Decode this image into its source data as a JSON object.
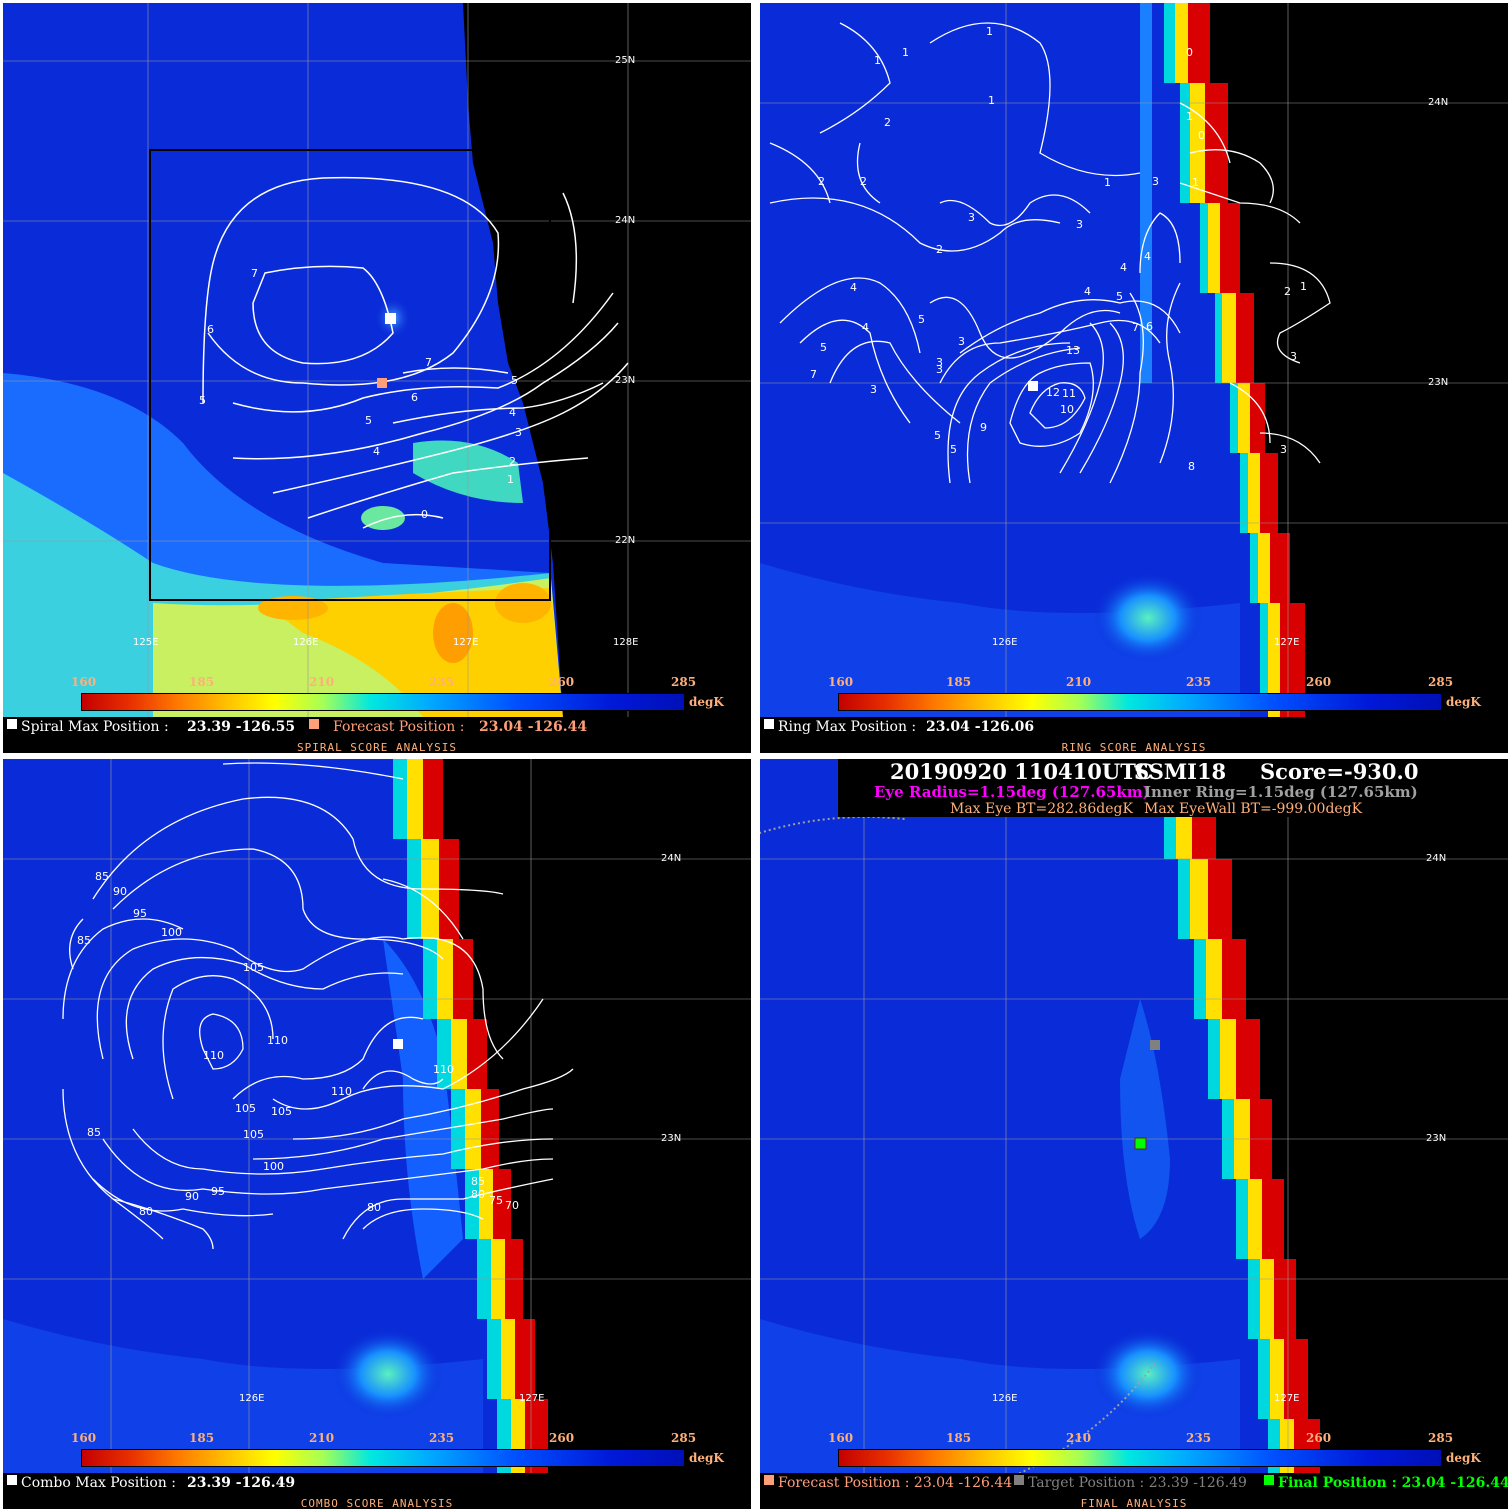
{
  "panels": {
    "spiral": {
      "lat_labels": [
        "25N",
        "24N",
        "23N",
        "22N"
      ],
      "lon_labels": [
        "125E",
        "126E",
        "127E",
        "128E"
      ],
      "contour_labels": [
        "7",
        "6",
        "7",
        "5",
        "6",
        "5",
        "5",
        "4",
        "4",
        "3",
        "2",
        "1",
        "0"
      ],
      "max_label": "Spiral Max Position :",
      "max_value": "23.39 -126.55",
      "forecast_label": "Forecast Position :",
      "forecast_value": "23.04 -126.44",
      "title": "SPIRAL SCORE ANALYSIS"
    },
    "ring": {
      "lat_labels": [
        "24N",
        "23N"
      ],
      "lon_labels": [
        "126E",
        "127E"
      ],
      "contour_labels": [
        "1",
        "1",
        "1",
        "1",
        "0",
        "2",
        "1",
        "0",
        "2",
        "2",
        "1",
        "3",
        "1",
        "3",
        "3",
        "2",
        "4",
        "4",
        "4",
        "5",
        "2",
        "1",
        "4",
        "5",
        "4",
        "3",
        "7",
        "6",
        "5",
        "13",
        "3",
        "7",
        "3",
        "3",
        "12",
        "11",
        "3",
        "10",
        "9",
        "5",
        "5",
        "3",
        "8"
      ],
      "max_label": "Ring Max Position :",
      "max_value": "23.04 -126.06",
      "title": "RING SCORE ANALYSIS"
    },
    "combo": {
      "lat_labels": [
        "24N",
        "23N"
      ],
      "lon_labels": [
        "126E",
        "127E"
      ],
      "contour_labels": [
        "85",
        "90",
        "95",
        "85",
        "100",
        "105",
        "110",
        "110",
        "110",
        "110",
        "105",
        "105",
        "105",
        "85",
        "100",
        "95",
        "90",
        "80",
        "80",
        "85",
        "80",
        "75",
        "70"
      ],
      "max_label": "Combo Max Position :",
      "max_value": "23.39 -126.49",
      "title": "COMBO SCORE ANALYSIS"
    },
    "final": {
      "lat_labels": [
        "24N",
        "23N"
      ],
      "lon_labels": [
        "126E",
        "127E"
      ],
      "header": {
        "date_line": "20190920  110410UTC",
        "sensor": "SSMI18",
        "score": "Score=-930.0",
        "eye_radius": "Eye Radius=1.15deg (127.65km)",
        "inner_ring": "Inner Ring=1.15deg (127.65km)",
        "max_eye_bt": "Max Eye BT=282.86degK",
        "max_eyewall_bt": "Max EyeWall BT=-999.00degK"
      },
      "forecast_label": "Forecast Position : 23.04 -126.44",
      "target_label": "Target Position : 23.39 -126.49",
      "final_label": "Final Position : 23.04 -126.44",
      "title": "FINAL ANALYSIS"
    }
  },
  "colorbar": {
    "ticks": [
      "160",
      "185",
      "210",
      "235",
      "260",
      "285"
    ],
    "unit": "degK"
  },
  "colors": {
    "forecast": "#ff9f7a",
    "target": "#808080",
    "final": "#00ff00",
    "eye_radius": "#ff00ff",
    "inner_ring": "#a0a0a0",
    "bt": "#ffb07a"
  }
}
